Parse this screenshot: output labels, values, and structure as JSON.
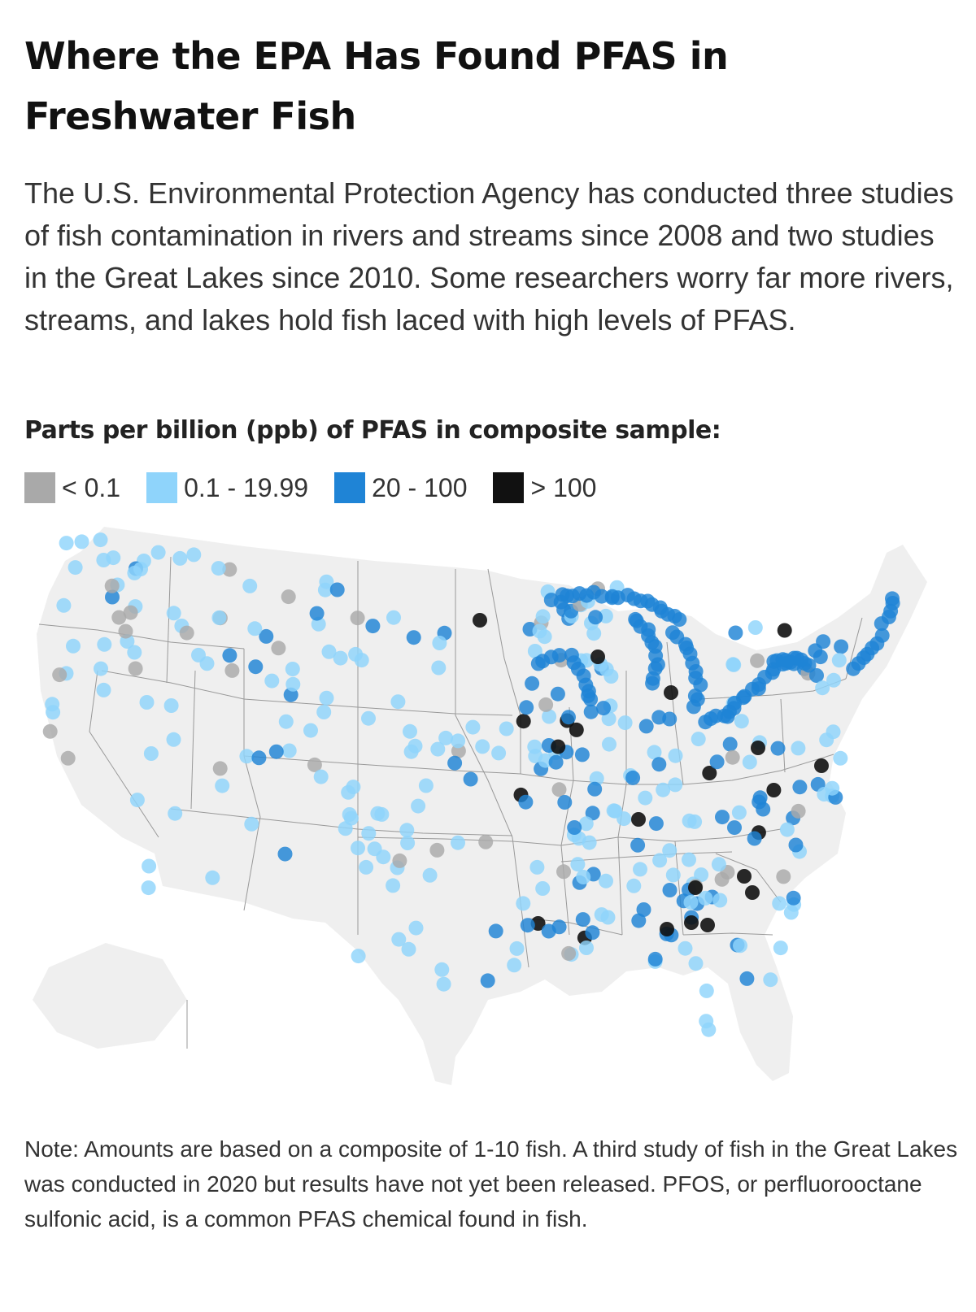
{
  "header": {
    "title": "Where the EPA Has Found PFAS in Freshwater Fish",
    "subtitle": "The U.S. Environmental Protection Agency has conducted three studies of fish contamination in rivers and streams since 2008 and two studies in the Great Lakes since 2010. Some researchers worry far more rivers, streams, and lakes hold fish laced with high levels of PFAS."
  },
  "legend": {
    "title": "Parts per billion (ppb) of PFAS in composite sample:",
    "items": [
      {
        "label": "< 0.1",
        "color": "#a9a9a9"
      },
      {
        "label": "0.1 - 19.99",
        "color": "#8fd4fb"
      },
      {
        "label": "20 - 100",
        "color": "#1f84d6"
      },
      {
        "label": "> 100",
        "color": "#111111"
      }
    ]
  },
  "map": {
    "land_color": "#efefef",
    "border_color": "#999999"
  },
  "note": "Note: Amounts are based on a composite of 1-10 fish. A third study of fish in the Great Lakes was conducted in 2020 but results have not yet been released. PFOS, or perfluorooctane sulfonic acid, is a common PFAS chemical found in fish."
}
